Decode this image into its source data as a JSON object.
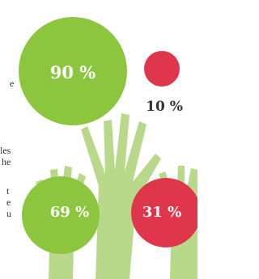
{
  "bubbles": [
    {
      "label": "90 %"
    },
    {
      "label": "10 %"
    },
    {
      "label": "69 %"
    },
    {
      "label": "31 %"
    }
  ],
  "text_fragments": [
    "e",
    "les",
    "he",
    "t",
    "e",
    "u"
  ]
}
